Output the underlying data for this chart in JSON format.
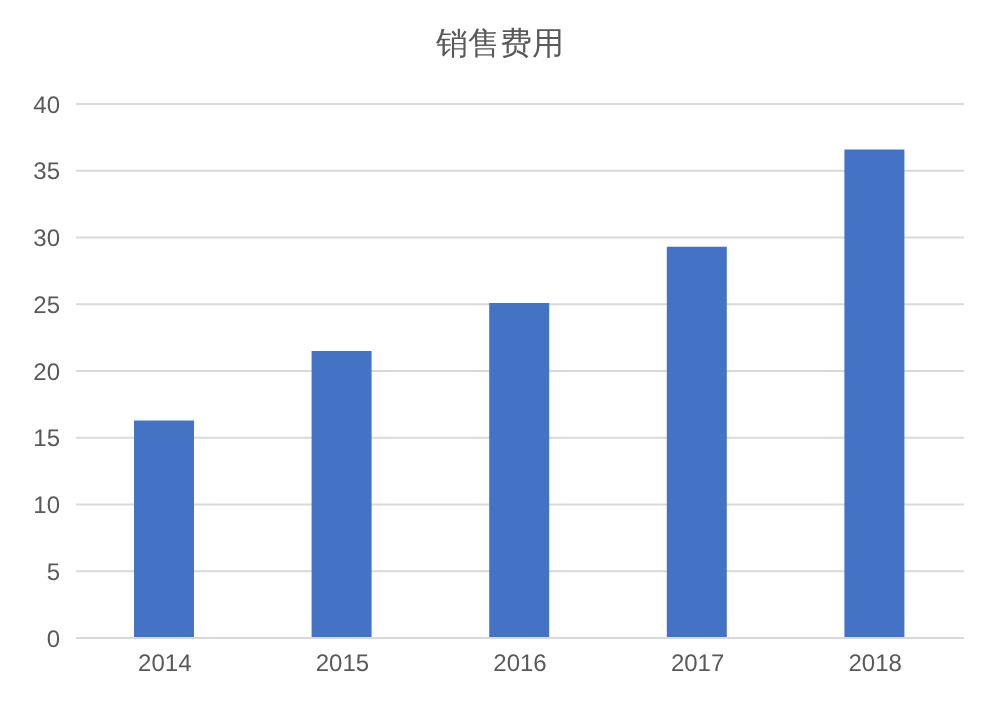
{
  "chart_data": {
    "type": "bar",
    "title": "销售费用",
    "categories": [
      "2014",
      "2015",
      "2016",
      "2017",
      "2018"
    ],
    "values": [
      16.3,
      21.5,
      25.1,
      29.3,
      36.6
    ],
    "color": "#4472c4",
    "ylim": [
      0,
      40
    ],
    "yticks": [
      0,
      5,
      10,
      15,
      20,
      25,
      30,
      35,
      40
    ],
    "grid": "y"
  }
}
